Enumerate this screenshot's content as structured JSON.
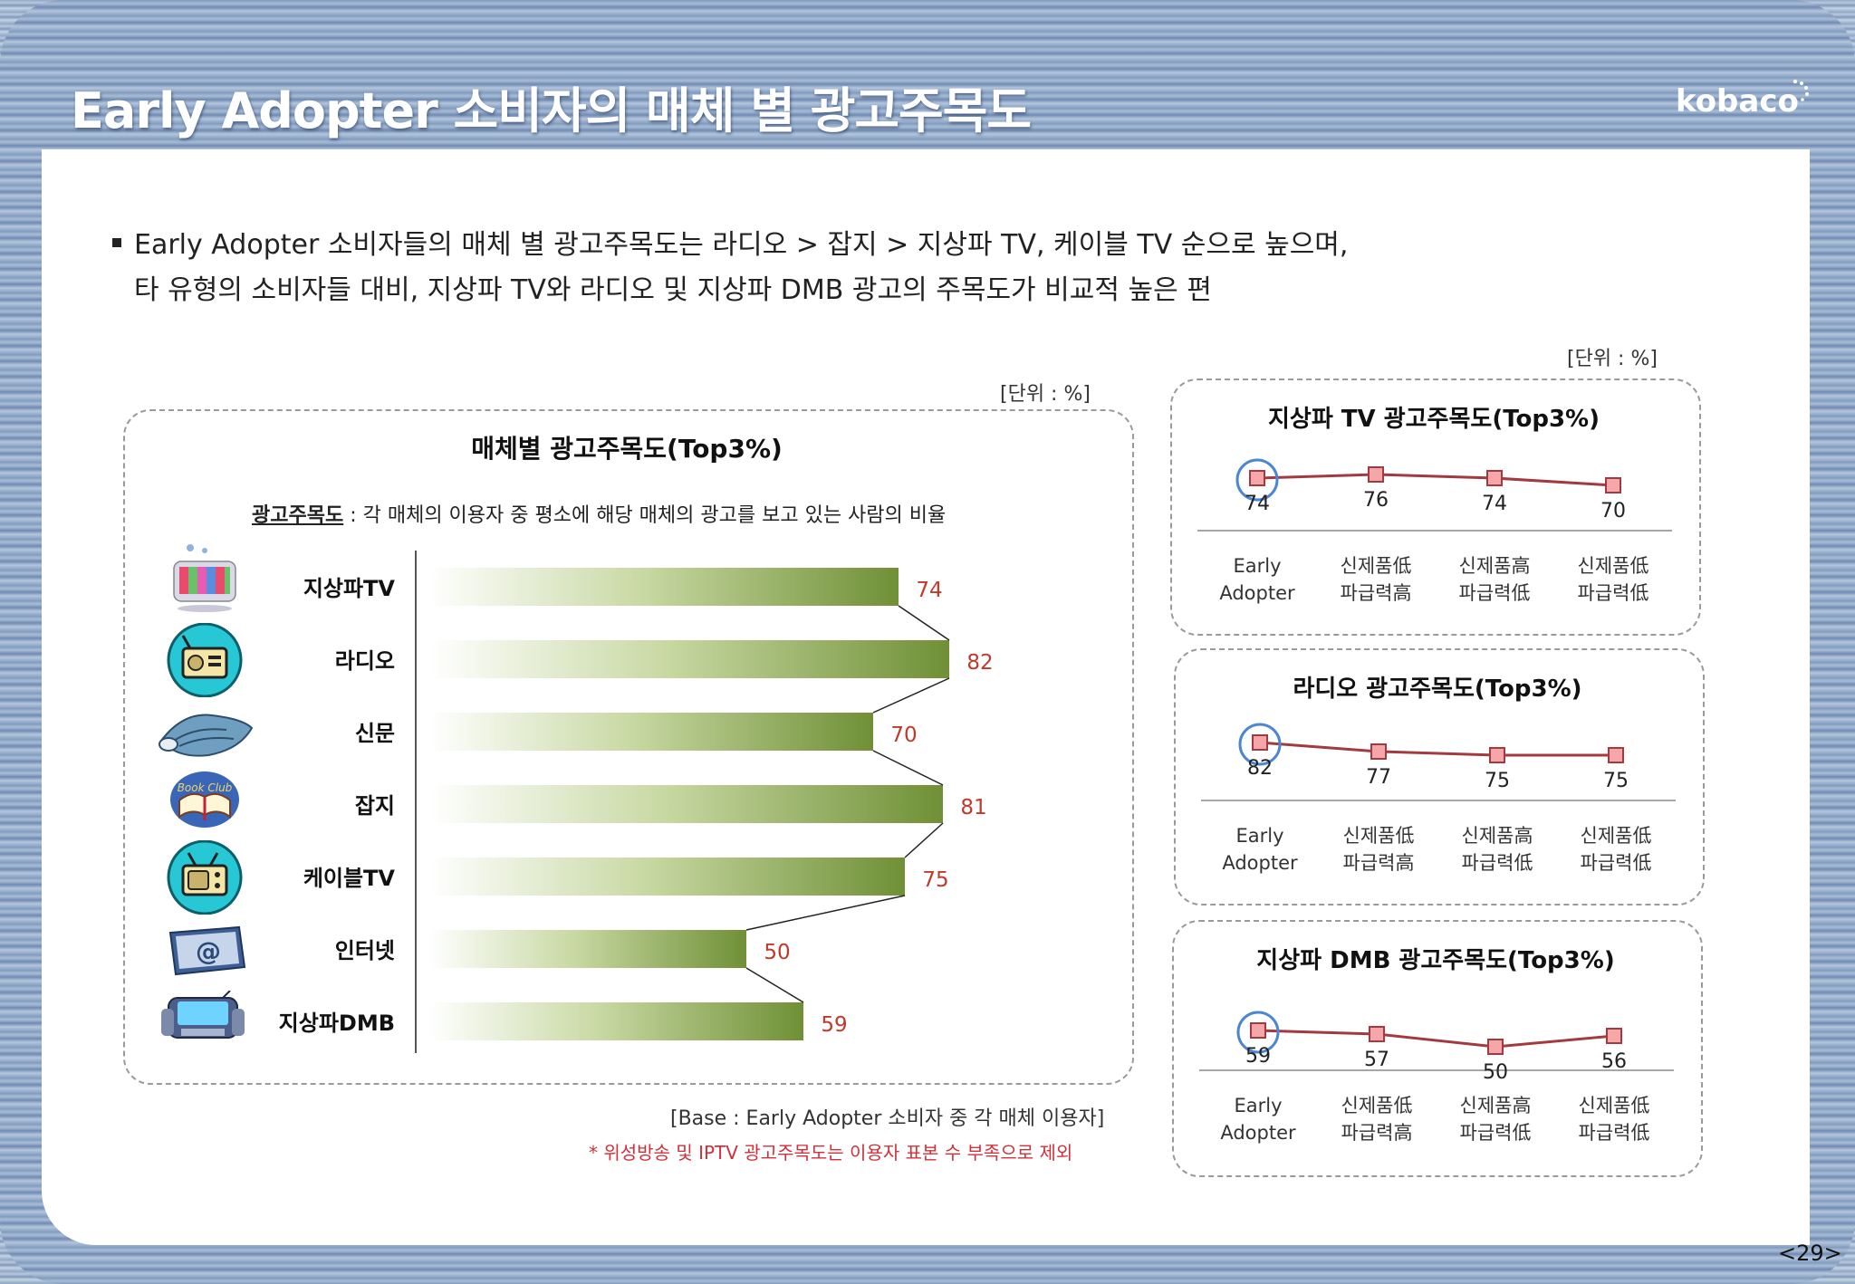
{
  "title": "Early Adopter 소비자의 매체 별 광고주목도",
  "logo": "kobaco",
  "page_number": "<29>",
  "summary": {
    "line1": "Early Adopter 소비자들의 매체 별 광고주목도는 라디오 > 잡지 > 지상파 TV, 케이블 TV 순으로 높으며,",
    "line2": "타 유형의 소비자들 대비, 지상파 TV와 라디오 및 지상파 DMB 광고의 주목도가 비교적 높은 편"
  },
  "main_chart": {
    "unit": "[단위 : %]",
    "title": "매체별 광고주목도(Top3%)",
    "definition_term": "광고주목도",
    "definition_text": " : 각 매체의 이용자 중 평소에 해당 매체의 광고를 보고 있는 사람의 비율",
    "base_note": "[Base : Early Adopter 소비자 중 각 매체 이용자]",
    "exclude_note": "* 위성방송 및 IPTV 광고주목도는 이용자 표본 수 부족으로 제외",
    "icons": [
      "tv-icon",
      "radio-icon",
      "newspaper-icon",
      "magazine-icon",
      "cable-tv-icon",
      "internet-icon",
      "dmb-icon"
    ]
  },
  "side_unit": "[단위 : %]",
  "chart_data": [
    {
      "type": "bar",
      "title": "매체별 광고주목도(Top3%)",
      "orientation": "horizontal",
      "categories": [
        "지상파TV",
        "라디오",
        "신문",
        "잡지",
        "케이블TV",
        "인터넷",
        "지상파DMB"
      ],
      "values": [
        74,
        82,
        70,
        81,
        75,
        50,
        59
      ],
      "xlim": [
        0,
        100
      ],
      "grid": false,
      "bar_color": "#7a9a3e",
      "label_color": "#c0392b"
    },
    {
      "type": "line",
      "title": "지상파 TV 광고주목도(Top3%)",
      "categories": [
        "Early Adopter",
        "신제품低 파급력高",
        "신제품高 파급력低",
        "신제품低 파급력低"
      ],
      "values": [
        74,
        76,
        74,
        70
      ],
      "highlight_index": 0,
      "line_color": "#a33a3f"
    },
    {
      "type": "line",
      "title": "라디오 광고주목도(Top3%)",
      "categories": [
        "Early Adopter",
        "신제품低 파급력高",
        "신제품高 파급력低",
        "신제품低 파급력低"
      ],
      "values": [
        82,
        77,
        75,
        75
      ],
      "highlight_index": 0,
      "line_color": "#a33a3f"
    },
    {
      "type": "line",
      "title": "지상파 DMB 광고주목도(Top3%)",
      "categories": [
        "Early Adopter",
        "신제품低 파급력高",
        "신제품高 파급력低",
        "신제품低 파급력低"
      ],
      "values": [
        59,
        57,
        50,
        56
      ],
      "highlight_index": 0,
      "line_color": "#a33a3f"
    }
  ]
}
